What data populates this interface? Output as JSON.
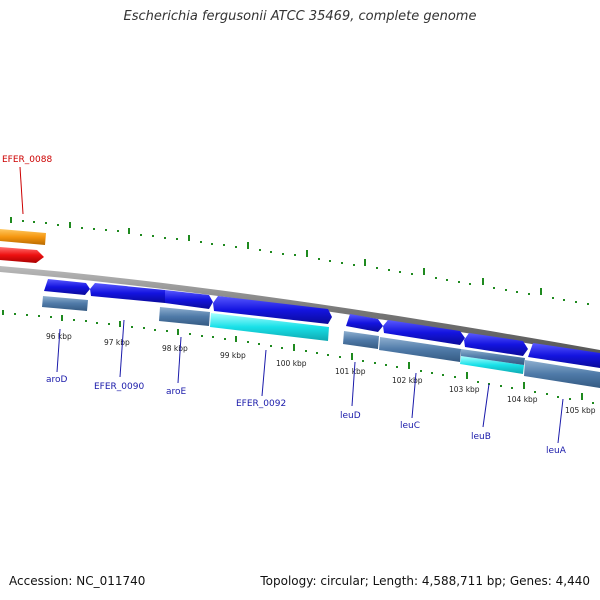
{
  "title": "Escherichia fergusonii ATCC 35469, complete genome",
  "accession": "Accession: NC_011740",
  "footer": "Topology: circular; Length: 4,588,711 bp; Genes: 4,440",
  "kbp_labels": [
    "96 kbp",
    "97 kbp",
    "98 kbp",
    "99 kbp",
    "100 kbp",
    "101 kbp",
    "102 kbp",
    "103 kbp",
    "104 kbp",
    "105 kbp"
  ],
  "gene_labels": {
    "efer0088": "EFER_0088",
    "aroD": "aroD",
    "efer0090": "EFER_0090",
    "aroE": "aroE",
    "efer0092": "EFER_0092",
    "leuD": "leuD",
    "leuC": "leuC",
    "leuB": "leuB",
    "leuA": "leuA"
  },
  "colors": {
    "cds_forward": "#1a1ae6",
    "cds_blue_gray": "#4f7aa8",
    "cds_cyan": "#19e0e8",
    "orange": "#f5960f",
    "red": "#ee1111",
    "backbone": "#888888",
    "tick_green": "#1f8a1f",
    "label_blue": "#1a1aaa",
    "label_red": "#cc0000"
  }
}
